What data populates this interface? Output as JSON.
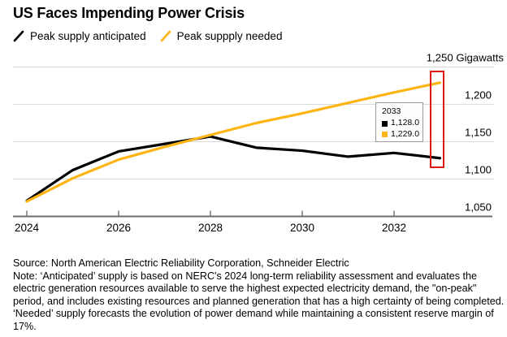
{
  "title": "US Faces Impending Power Crisis",
  "legend": [
    {
      "label": "Peak supply anticipated",
      "color": "#000000"
    },
    {
      "label": "Peak suppply needed",
      "color": "#fcb514"
    }
  ],
  "chart_data": {
    "type": "line",
    "title": "US Faces Impending Power Crisis",
    "ylabel": "Gigawatts",
    "xlabel": "",
    "grid": true,
    "legend_position": "top-left",
    "ylim": [
      1050,
      1250
    ],
    "x": [
      2024,
      2025,
      2026,
      2027,
      2028,
      2029,
      2030,
      2031,
      2032,
      2033
    ],
    "series": [
      {
        "name": "Peak supply anticipated",
        "color": "#000000",
        "values": [
          1071,
          1112,
          1137,
          1147,
          1157,
          1142,
          1138,
          1130,
          1135,
          1128
        ]
      },
      {
        "name": "Peak suppply needed",
        "color": "#fcb514",
        "values": [
          1070,
          1101,
          1126,
          1143,
          1159,
          1175,
          1188,
          1202,
          1216,
          1229
        ]
      }
    ],
    "y_ticks": [
      {
        "value": 1250,
        "label": "1,250 Gigawatts"
      },
      {
        "value": 1200,
        "label": "1,200"
      },
      {
        "value": 1150,
        "label": "1,150"
      },
      {
        "value": 1100,
        "label": "1,100"
      },
      {
        "value": 1050,
        "label": "1,050"
      }
    ],
    "x_ticks": [
      {
        "value": 2024,
        "label": "2024"
      },
      {
        "value": 2026,
        "label": "2026"
      },
      {
        "value": 2028,
        "label": "2028"
      },
      {
        "value": 2030,
        "label": "2030"
      },
      {
        "value": 2032,
        "label": "2032"
      }
    ],
    "tooltip": {
      "year": "2033",
      "rows": [
        {
          "series": "Peak supply anticipated",
          "color": "#000000",
          "value": "1,128.0"
        },
        {
          "series": "Peak suppply needed",
          "color": "#fcb514",
          "value": "1,229.0"
        }
      ]
    },
    "annotation": {
      "type": "highlight-rect",
      "year": 2033,
      "v_min": 1115,
      "v_max": 1245,
      "color": "#e01812"
    }
  },
  "footer": {
    "lines": [
      "Source: North American Electric Reliability Corporation, Schneider Electric",
      "Note: ‘Anticipated’ supply is based on NERC's 2024 long-term reliability assessment and evaluates the",
      "electric generation resources available to serve the highest expected electricity demand, the \"on-peak\"",
      "period, and includes existing resources and planned generation that has a high certainty of being completed.",
      "‘Needed’ supply forecasts the evolution of power demand while maintaining a consistent reserve margin of",
      "17%."
    ]
  }
}
